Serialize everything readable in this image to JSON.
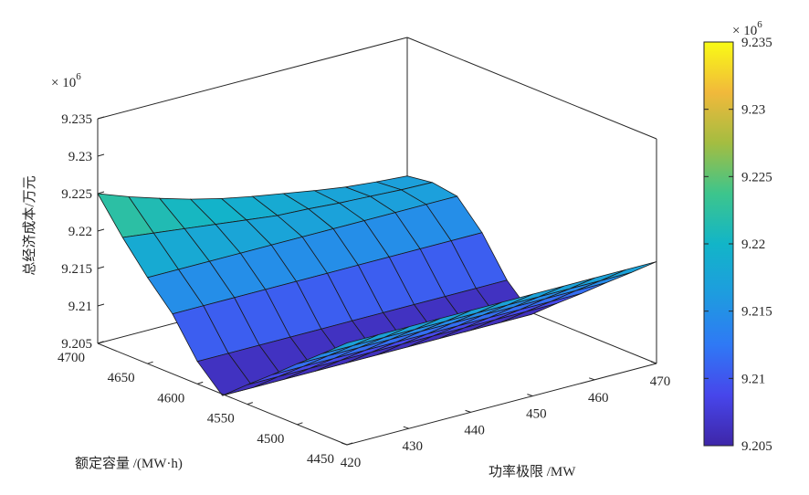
{
  "chart_data": {
    "type": "surface",
    "xlabel": "功率极限 /MW",
    "ylabel": "额定容量 /(MW·h)",
    "zlabel": "总经济成本/万元",
    "x_ticks": [
      "420",
      "430",
      "440",
      "450",
      "460",
      "470"
    ],
    "y_ticks": [
      "4450",
      "4500",
      "4550",
      "4600",
      "4650",
      "4700"
    ],
    "z_ticks": [
      "9.205",
      "9.21",
      "9.215",
      "9.22",
      "9.225",
      "9.23",
      "9.235"
    ],
    "z_multiplier": "× 10",
    "z_multiplier_exp": "6",
    "colorbar_ticks": [
      "9.205",
      "9.21",
      "9.215",
      "9.22",
      "9.225",
      "9.23",
      "9.235"
    ],
    "colorbar_multiplier": "× 10",
    "colorbar_multiplier_exp": "6",
    "xlim": [
      420,
      470
    ],
    "ylim": [
      4450,
      4700
    ],
    "zlim": [
      9.205,
      9.235
    ],
    "colormap": "parula",
    "grid": false,
    "x": [
      420,
      425,
      430,
      435,
      440,
      445,
      450,
      455,
      460,
      465,
      470
    ],
    "y": [
      4450,
      4475,
      4500,
      4525,
      4550,
      4575,
      4600,
      4625,
      4650,
      4675,
      4700
    ],
    "z": [
      [
        9.2186,
        9.2186,
        9.2186,
        9.2186,
        9.2186,
        9.2186,
        9.2186,
        9.2186,
        9.2186,
        9.2186,
        9.2186
      ],
      [
        9.2158,
        9.2158,
        9.2158,
        9.2158,
        9.2158,
        9.2158,
        9.2158,
        9.2158,
        9.2158,
        9.2158,
        9.2158
      ],
      [
        9.2131,
        9.2131,
        9.2131,
        9.2131,
        9.2131,
        9.2131,
        9.2131,
        9.2131,
        9.2131,
        9.2131,
        9.2131
      ],
      [
        9.2103,
        9.2103,
        9.2103,
        9.2103,
        9.2103,
        9.2103,
        9.2103,
        9.2103,
        9.2103,
        9.2103,
        9.2103
      ],
      [
        9.2076,
        9.2076,
        9.2076,
        9.2076,
        9.2076,
        9.2076,
        9.2076,
        9.2076,
        9.2076,
        9.2076,
        9.2076
      ],
      [
        9.2048,
        9.2048,
        9.2048,
        9.2048,
        9.2048,
        9.2048,
        9.2048,
        9.2048,
        9.2048,
        9.2048,
        9.2048
      ],
      [
        9.208,
        9.208,
        9.208,
        9.208,
        9.208,
        9.208,
        9.208,
        9.208,
        9.208,
        9.208,
        9.208
      ],
      [
        9.213,
        9.213,
        9.213,
        9.213,
        9.213,
        9.213,
        9.213,
        9.213,
        9.213,
        9.213,
        9.213
      ],
      [
        9.2165,
        9.2165,
        9.2165,
        9.2165,
        9.2165,
        9.2165,
        9.2165,
        9.2165,
        9.2165,
        9.2165,
        9.2165
      ],
      [
        9.2205,
        9.22,
        9.2195,
        9.219,
        9.2185,
        9.218,
        9.2178,
        9.2175,
        9.2173,
        9.2171,
        9.217
      ],
      [
        9.225,
        9.2235,
        9.2222,
        9.221,
        9.22,
        9.2192,
        9.2185,
        9.2178,
        9.2172,
        9.2168,
        9.2165
      ]
    ]
  }
}
